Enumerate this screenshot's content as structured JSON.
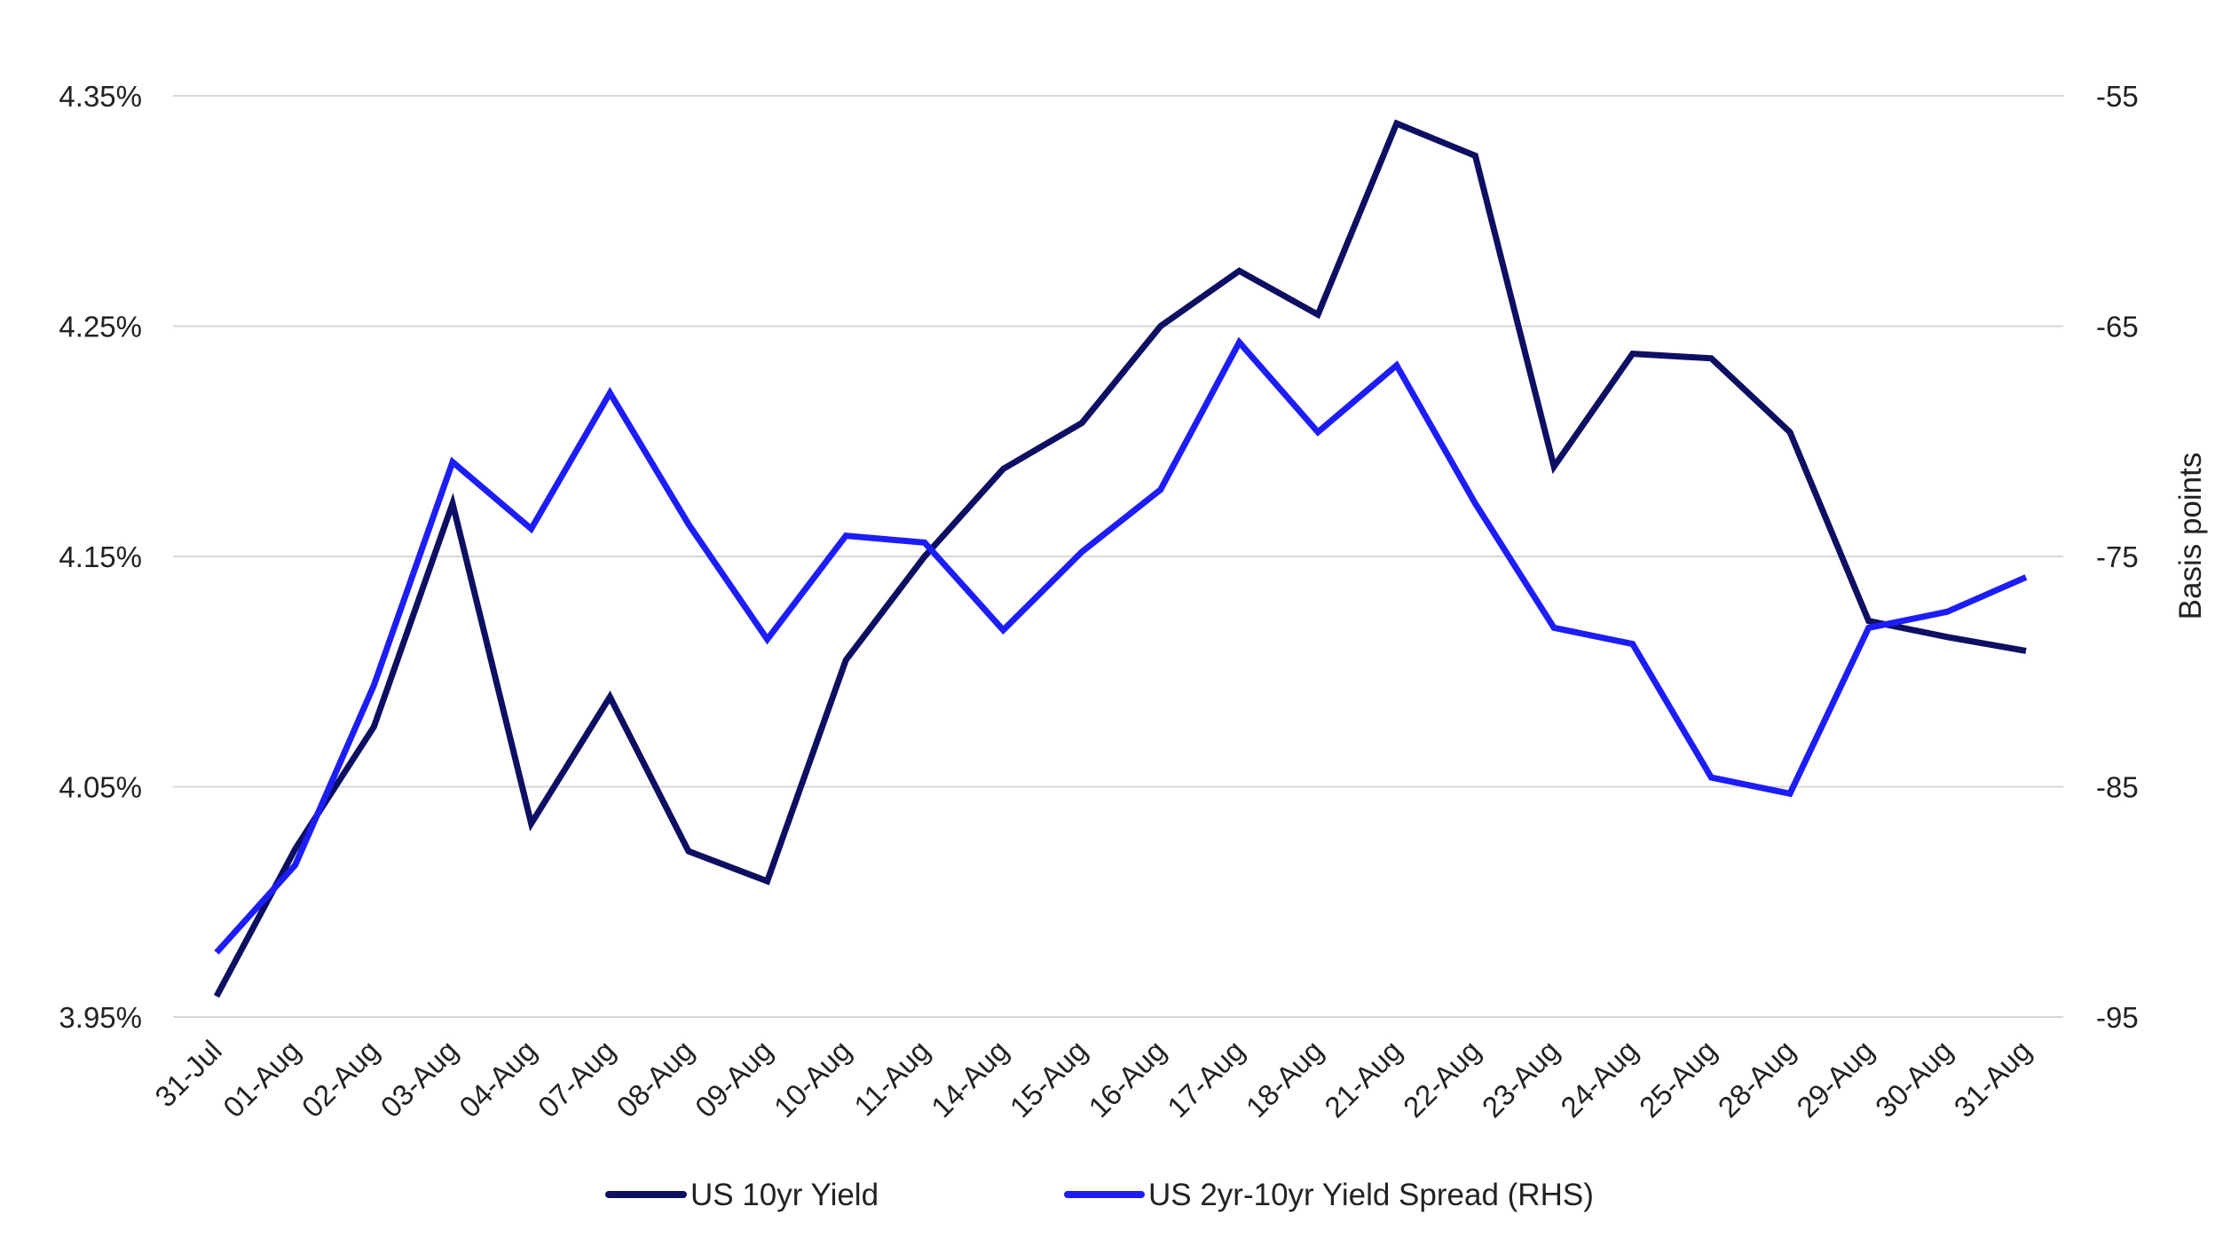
{
  "chart_data": {
    "type": "line",
    "title": "",
    "categories": [
      "31-Jul",
      "01-Aug",
      "02-Aug",
      "03-Aug",
      "04-Aug",
      "07-Aug",
      "08-Aug",
      "09-Aug",
      "10-Aug",
      "11-Aug",
      "14-Aug",
      "15-Aug",
      "16-Aug",
      "17-Aug",
      "18-Aug",
      "21-Aug",
      "22-Aug",
      "23-Aug",
      "24-Aug",
      "25-Aug",
      "28-Aug",
      "29-Aug",
      "30-Aug",
      "31-Aug"
    ],
    "y_left": {
      "ticks": [
        "4.35%",
        "4.25%",
        "4.15%",
        "4.05%",
        "3.95%"
      ],
      "tick_values": [
        4.35,
        4.25,
        4.15,
        4.05,
        3.95
      ],
      "ylim": [
        3.95,
        4.35
      ],
      "label": ""
    },
    "y_right": {
      "ticks": [
        "-55",
        "-65",
        "-75",
        "-85",
        "-95"
      ],
      "tick_values": [
        -55,
        -65,
        -75,
        -85,
        -95
      ],
      "ylim": [
        -95,
        -55
      ],
      "label": "Basis points"
    },
    "grid": true,
    "legend_position": "bottom",
    "series": [
      {
        "name": "US 10yr Yield",
        "axis": "left",
        "color": "#0d0f63",
        "values": [
          3.959,
          4.023,
          4.076,
          4.173,
          4.034,
          4.089,
          4.022,
          4.009,
          4.105,
          4.15,
          4.188,
          4.208,
          4.25,
          4.274,
          4.255,
          4.338,
          4.324,
          4.189,
          4.238,
          4.236,
          4.204,
          4.122,
          4.115,
          4.109
        ]
      },
      {
        "name": "US 2yr-10yr Yield Spread (RHS)",
        "axis": "right",
        "color": "#1d1dfa",
        "values": [
          -92.2,
          -88.4,
          -80.6,
          -70.9,
          -73.8,
          -67.9,
          -73.6,
          -78.6,
          -74.1,
          -74.4,
          -78.2,
          -74.8,
          -72.1,
          -65.7,
          -69.6,
          -66.7,
          -72.7,
          -78.1,
          -78.8,
          -84.6,
          -85.3,
          -78.1,
          -77.4,
          -75.9
        ]
      }
    ]
  }
}
